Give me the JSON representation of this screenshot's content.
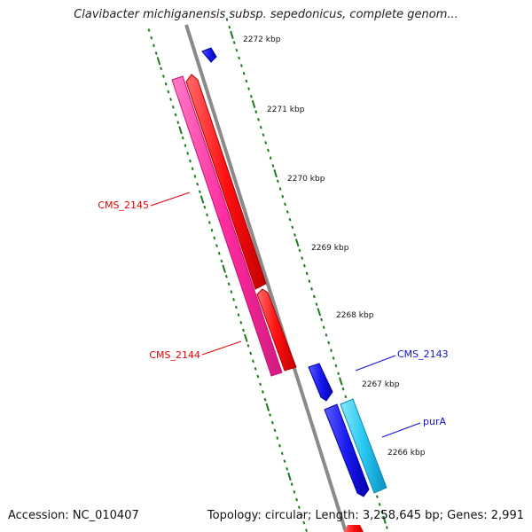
{
  "header": {
    "title": "Clavibacter michiganensis subsp. sepedonicus, complete genom..."
  },
  "footer": {
    "accession": "Accession: NC_010407",
    "summary": "Topology: circular; Length: 3,258,645 bp; Genes: 2,991"
  },
  "colors": {
    "backbone": "#8a8a8a",
    "tick": "#1f7a1f",
    "gene_red": "#ff1a1a",
    "gene_pink": "#ff2aa0",
    "gene_blue": "#1a1aff",
    "gene_cyan": "#28c8f0",
    "label_red": "#e00000",
    "label_blue": "#1010d0"
  },
  "scale_labels": [
    "2272 kbp",
    "2271 kbp",
    "2270 kbp",
    "2269 kbp",
    "2268 kbp",
    "2267 kbp",
    "2266 kbp"
  ],
  "genes": [
    {
      "name": "CMS_2145",
      "color": "gene_pink",
      "label_color": "label_red"
    },
    {
      "name": "CMS_2144",
      "color": "gene_red",
      "label_color": "label_red"
    },
    {
      "name": "CMS_2143",
      "color": "gene_blue",
      "label_color": "label_blue"
    },
    {
      "name": "purA",
      "color": "gene_cyan",
      "label_color": "label_blue"
    }
  ]
}
